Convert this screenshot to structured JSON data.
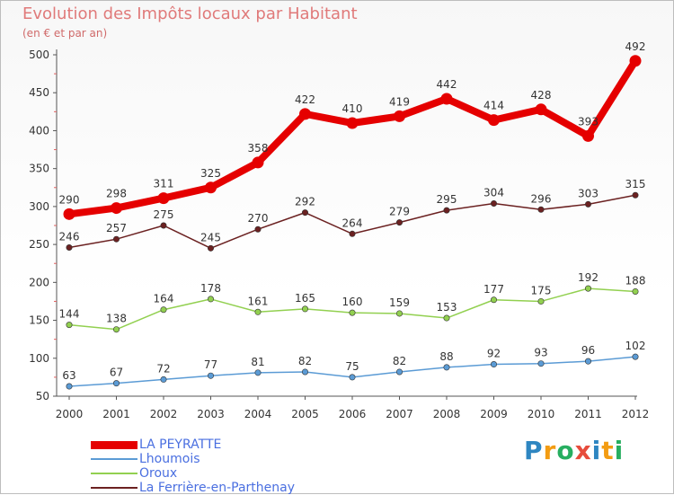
{
  "chart_data": {
    "type": "line",
    "title": "Evolution des Impôts locaux par Habitant",
    "subtitle": "(en € et par an)",
    "x": [
      "2000",
      "2001",
      "2002",
      "2003",
      "2004",
      "2005",
      "2006",
      "2007",
      "2008",
      "2009",
      "2010",
      "2011",
      "2012"
    ],
    "yticks": [
      "50",
      "100",
      "150",
      "200",
      "250",
      "300",
      "350",
      "400",
      "450",
      "500"
    ],
    "ylim": [
      50,
      500
    ],
    "grid": false,
    "legend_position": "bottom-left",
    "series": [
      {
        "name": "LA PEYRATTE",
        "color": "#e50000",
        "highlight": true,
        "values": [
          290,
          298,
          311,
          325,
          358,
          422,
          410,
          419,
          442,
          414,
          428,
          393,
          492
        ]
      },
      {
        "name": "Lhoumois",
        "color": "#5b9bd5",
        "highlight": false,
        "values": [
          63,
          67,
          72,
          77,
          81,
          82,
          75,
          82,
          88,
          92,
          93,
          96,
          102
        ]
      },
      {
        "name": "Oroux",
        "color": "#92d050",
        "highlight": false,
        "values": [
          144,
          138,
          164,
          178,
          161,
          165,
          160,
          159,
          153,
          177,
          175,
          192,
          188
        ]
      },
      {
        "name": "La Ferrière-en-Parthenay",
        "color": "#6b2121",
        "highlight": false,
        "values": [
          246,
          257,
          275,
          245,
          270,
          292,
          264,
          279,
          295,
          304,
          296,
          303,
          315
        ]
      }
    ]
  },
  "logo": {
    "letters": [
      "P",
      "r",
      "o",
      "x",
      "i",
      "t",
      "i"
    ],
    "colors": [
      "#2e86c1",
      "#f39c12",
      "#27ae60",
      "#e74c3c",
      "#2e86c1",
      "#f39c12",
      "#27ae60"
    ]
  }
}
